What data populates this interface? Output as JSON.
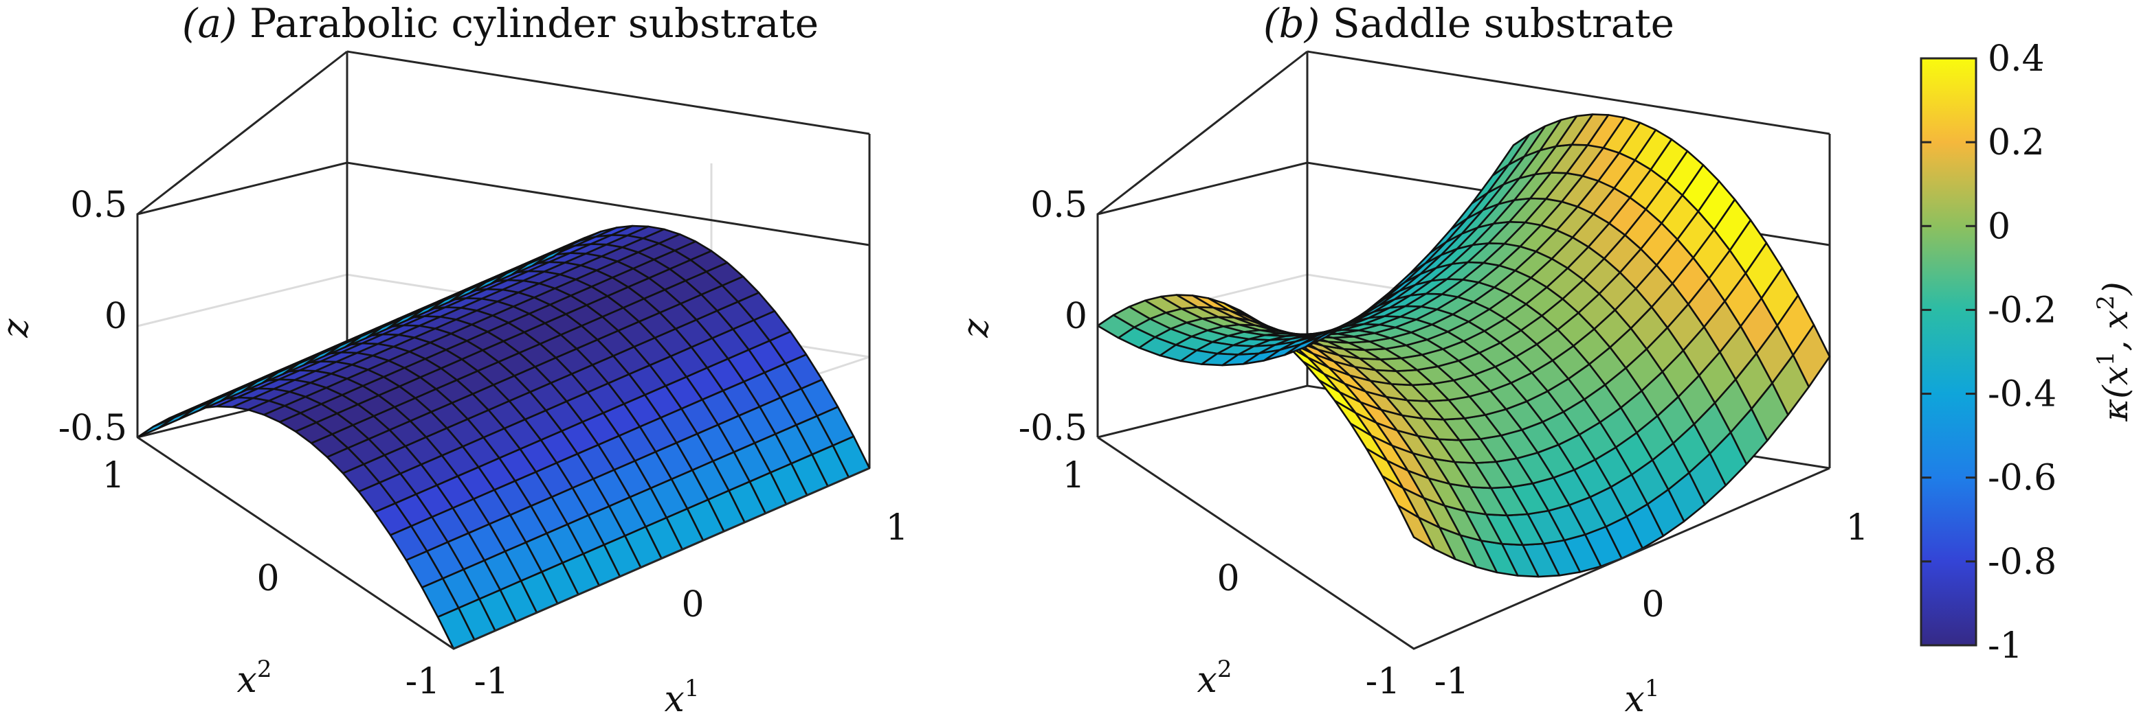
{
  "figure": {
    "colorbar": {
      "label": "κ(x¹, x²)",
      "label_main": "κ(x",
      "label_sup1": "1",
      "label_mid": ", x",
      "label_sup2": "2",
      "label_end": ")",
      "range": [
        -1,
        0.4
      ],
      "ticks": [
        "0.4",
        "0.2",
        "0",
        "-0.2",
        "-0.4",
        "-0.6",
        "-0.8",
        "-1"
      ],
      "tick_values": [
        0.4,
        0.2,
        0,
        -0.2,
        -0.4,
        -0.6,
        -0.8,
        -1
      ],
      "colormap": "parula"
    }
  },
  "chart_data": [
    {
      "type": "surface",
      "title": "(a) Parabolic cylinder substrate",
      "title_letter": "(a)",
      "title_text": "Parabolic cylinder substrate",
      "surface": "z = 0.5*(1 - (x²)²) - 0.5",
      "grid_n": 21,
      "x1_range": [
        -1,
        1
      ],
      "x2_range": [
        -1,
        1
      ],
      "zlim": [
        -0.5,
        0.5
      ],
      "z_ticks": [
        "0.5",
        "0",
        "-0.5"
      ],
      "x1_ticks": [
        "-1",
        "0",
        "1"
      ],
      "x2_ticks": [
        "1",
        "0",
        "-1"
      ],
      "xlabel": "x¹",
      "ylabel": "x²",
      "zlabel": "z",
      "color_by": "curvature κ",
      "curvature_range": [
        -1,
        -0.35
      ]
    },
    {
      "type": "surface",
      "title": "(b) Saddle substrate",
      "title_letter": "(b)",
      "title_text": "Saddle substrate",
      "surface": "z = 0.5*((x¹)² - (x²)²)",
      "grid_n": 21,
      "x1_range": [
        -1,
        1
      ],
      "x2_range": [
        -1,
        1
      ],
      "zlim": [
        -0.5,
        0.5
      ],
      "z_ticks": [
        "0.5",
        "0",
        "-0.5"
      ],
      "x1_ticks": [
        "-1",
        "0",
        "1"
      ],
      "x2_ticks": [
        "1",
        "0",
        "-1"
      ],
      "xlabel": "x¹",
      "ylabel": "x²",
      "zlabel": "z",
      "color_by": "curvature κ",
      "curvature_range": [
        -0.45,
        0.4
      ]
    }
  ]
}
